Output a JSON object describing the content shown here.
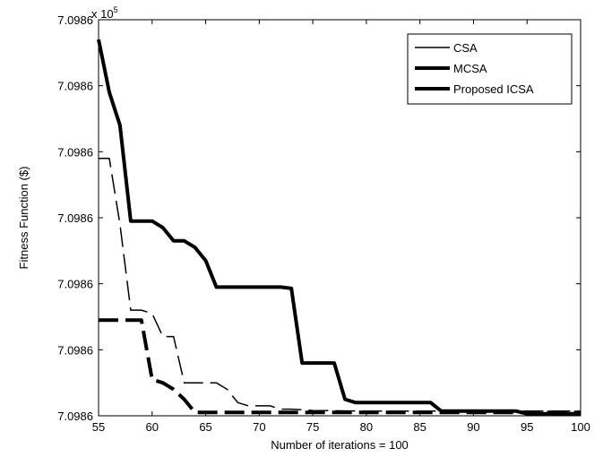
{
  "chart_data": {
    "type": "line",
    "xlabel": "Number of iterations = 100",
    "ylabel": "Fitness Function ($)",
    "exponent_label": "x 10",
    "exponent_power": "5",
    "xlim": [
      55,
      100
    ],
    "xticks": [
      "55",
      "60",
      "65",
      "70",
      "75",
      "80",
      "85",
      "90",
      "95",
      "100"
    ],
    "ylim": [
      0,
      6
    ],
    "yticks": [
      "7.0986",
      "7.0986",
      "7.0986",
      "7.0986",
      "7.0986",
      "7.0986",
      "7.0986"
    ],
    "grid": false,
    "legend_position": "top-right",
    "series": [
      {
        "name": "CSA",
        "style": "thin-dashed",
        "points": [
          [
            55,
            3.9
          ],
          [
            56,
            3.9
          ],
          [
            57,
            2.9
          ],
          [
            58,
            1.6
          ],
          [
            59,
            1.6
          ],
          [
            60,
            1.55
          ],
          [
            61,
            1.2
          ],
          [
            62,
            1.2
          ],
          [
            63,
            0.5
          ],
          [
            64,
            0.5
          ],
          [
            65,
            0.5
          ],
          [
            66,
            0.5
          ],
          [
            67,
            0.4
          ],
          [
            68,
            0.2
          ],
          [
            69,
            0.15
          ],
          [
            70,
            0.15
          ],
          [
            71,
            0.15
          ],
          [
            72,
            0.1
          ],
          [
            73,
            0.1
          ],
          [
            75,
            0.08
          ],
          [
            80,
            0.07
          ],
          [
            85,
            0.07
          ],
          [
            90,
            0.07
          ],
          [
            95,
            0.07
          ],
          [
            100,
            0.07
          ]
        ]
      },
      {
        "name": "MCSA",
        "style": "thick-solid",
        "points": [
          [
            55,
            5.7
          ],
          [
            56,
            4.9
          ],
          [
            57,
            4.4
          ],
          [
            58,
            2.95
          ],
          [
            59,
            2.95
          ],
          [
            60,
            2.95
          ],
          [
            61,
            2.85
          ],
          [
            62,
            2.65
          ],
          [
            63,
            2.65
          ],
          [
            64,
            2.55
          ],
          [
            65,
            2.35
          ],
          [
            66,
            1.95
          ],
          [
            67,
            1.95
          ],
          [
            70,
            1.95
          ],
          [
            72,
            1.95
          ],
          [
            73,
            1.93
          ],
          [
            74,
            0.8
          ],
          [
            75,
            0.8
          ],
          [
            76,
            0.8
          ],
          [
            77,
            0.8
          ],
          [
            78,
            0.25
          ],
          [
            79,
            0.2
          ],
          [
            80,
            0.2
          ],
          [
            85,
            0.2
          ],
          [
            86,
            0.2
          ],
          [
            87,
            0.07
          ],
          [
            90,
            0.07
          ],
          [
            94,
            0.07
          ],
          [
            95,
            0.03
          ],
          [
            100,
            0.03
          ]
        ]
      },
      {
        "name": "Proposed ICSA",
        "style": "thick-dashed",
        "points": [
          [
            55,
            1.45
          ],
          [
            56,
            1.45
          ],
          [
            57,
            1.45
          ],
          [
            58,
            1.45
          ],
          [
            59,
            1.45
          ],
          [
            60,
            0.55
          ],
          [
            61,
            0.5
          ],
          [
            62,
            0.4
          ],
          [
            63,
            0.25
          ],
          [
            64,
            0.05
          ],
          [
            65,
            0.05
          ],
          [
            70,
            0.05
          ],
          [
            75,
            0.05
          ],
          [
            80,
            0.05
          ],
          [
            85,
            0.05
          ],
          [
            90,
            0.05
          ],
          [
            95,
            0.05
          ],
          [
            100,
            0.05
          ]
        ]
      }
    ]
  }
}
